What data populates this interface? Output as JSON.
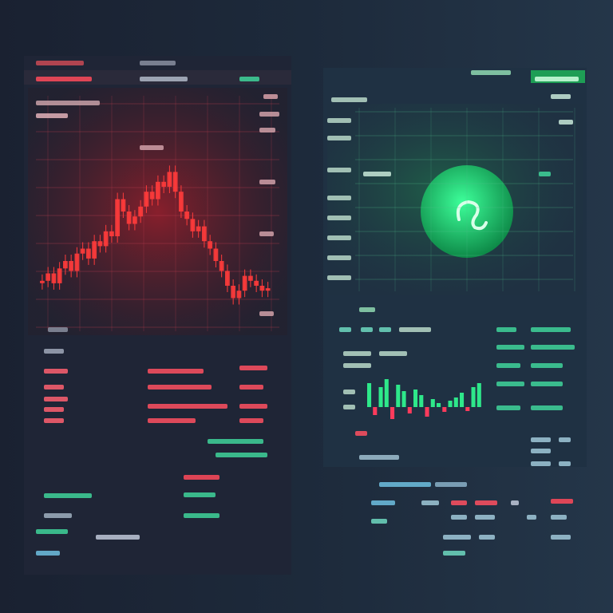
{
  "left_panel": {
    "chart": {
      "ylim": [
        0,
        100
      ],
      "color": "#ff3b3b",
      "values": [
        22,
        25,
        21,
        27,
        30,
        26,
        33,
        35,
        31,
        38,
        36,
        42,
        40,
        55,
        50,
        45,
        48,
        52,
        58,
        55,
        62,
        60,
        66,
        58,
        50,
        47,
        42,
        44,
        38,
        35,
        30,
        26,
        20,
        15,
        18,
        24,
        22,
        20,
        18,
        19
      ]
    }
  },
  "right_panel": {
    "chart": {
      "ylim": [
        -40,
        40
      ],
      "up_color": "#2ee88a",
      "down_color": "#ff3b5c",
      "values": [
        30,
        -10,
        25,
        35,
        -15,
        28,
        20,
        -8,
        22,
        15,
        -12,
        10,
        5,
        -6,
        8,
        12,
        18,
        -5,
        25,
        30
      ]
    }
  }
}
